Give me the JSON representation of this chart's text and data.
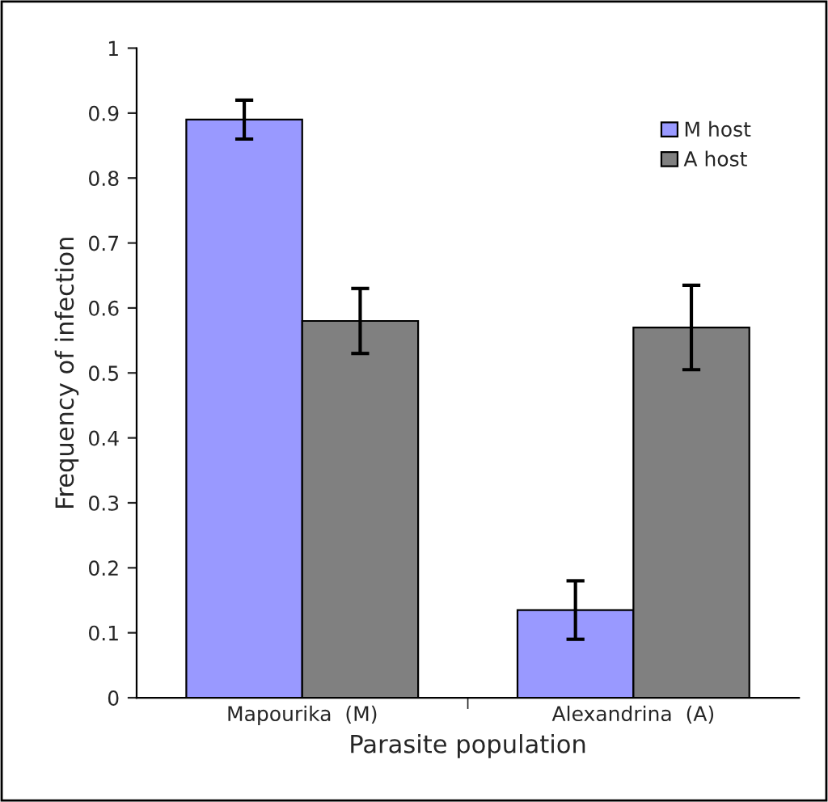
{
  "chart_data": {
    "type": "bar",
    "xlabel": "Parasite population",
    "ylabel": "Frequency of infection",
    "categories": [
      "Mapourika  (M)",
      "Alexandrina  (A)"
    ],
    "series": [
      {
        "name": "M host",
        "color": "#9999ff",
        "values": [
          0.89,
          0.135
        ],
        "errors": [
          [
            0.86,
            0.92
          ],
          [
            0.09,
            0.18
          ]
        ]
      },
      {
        "name": "A host",
        "color": "#808080",
        "values": [
          0.58,
          0.57
        ],
        "errors": [
          [
            0.53,
            0.63
          ],
          [
            0.505,
            0.635
          ]
        ]
      }
    ],
    "ylim": [
      0,
      1
    ],
    "yticks": [
      0,
      0.1,
      0.2,
      0.3,
      0.4,
      0.5,
      0.6,
      0.7,
      0.8,
      0.9,
      1
    ],
    "grid": false,
    "legend": "top right"
  }
}
